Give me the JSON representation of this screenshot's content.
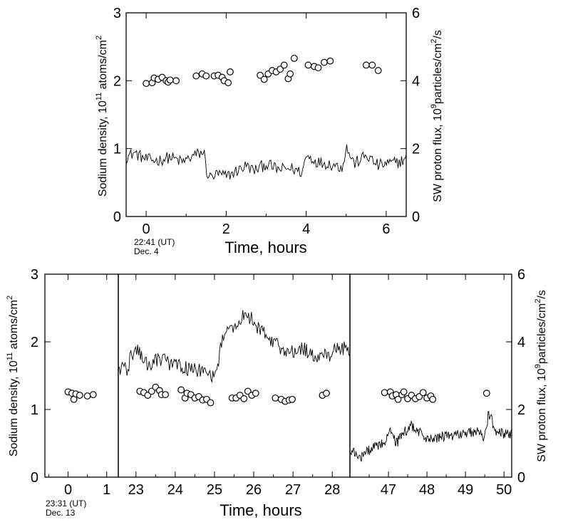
{
  "chart_data": [
    {
      "type": "scatter",
      "xlabel": "Time, hours",
      "ylabel": "Sodium density, 10",
      "ylabel_sup": "11",
      "ylabel_tail": " atoms/cm",
      "ylabel_tail_sup": "2",
      "y2label": "SW proton flux, 10",
      "y2label_sup": "9",
      "y2label_tail": "particles/cm",
      "y2label_tail_sup": "2",
      "y2label_end": "/s",
      "start_time": "22:41 (UT)",
      "start_date": "Dec. 4",
      "xlim": [
        -0.5,
        6.5
      ],
      "ylim": [
        0,
        3
      ],
      "y2lim": [
        0,
        6
      ],
      "x_ticks": [
        "0",
        "2",
        "4",
        "6"
      ],
      "y_ticks": [
        "0",
        "1",
        "2",
        "3"
      ],
      "y2_ticks": [
        "0",
        "2",
        "4",
        "6"
      ],
      "series": [
        {
          "marker": "open-circle",
          "axis": "left",
          "points": [
            [
              0.0,
              1.96
            ],
            [
              0.15,
              1.97
            ],
            [
              0.2,
              2.04
            ],
            [
              0.3,
              2.02
            ],
            [
              0.4,
              2.05
            ],
            [
              0.5,
              2.0
            ],
            [
              0.55,
              1.98
            ],
            [
              0.6,
              2.01
            ],
            [
              0.75,
              2.0
            ],
            [
              1.25,
              2.07
            ],
            [
              1.4,
              2.1
            ],
            [
              1.5,
              2.07
            ],
            [
              1.7,
              2.07
            ],
            [
              1.8,
              2.08
            ],
            [
              1.9,
              2.05
            ],
            [
              1.95,
              2.0
            ],
            [
              2.05,
              1.97
            ],
            [
              2.1,
              2.13
            ],
            [
              2.85,
              2.08
            ],
            [
              2.95,
              2.02
            ],
            [
              3.05,
              2.1
            ],
            [
              3.15,
              2.15
            ],
            [
              3.25,
              2.13
            ],
            [
              3.35,
              2.17
            ],
            [
              3.45,
              2.23
            ],
            [
              3.55,
              2.03
            ],
            [
              3.6,
              2.1
            ],
            [
              3.7,
              2.33
            ],
            [
              4.05,
              2.23
            ],
            [
              4.2,
              2.21
            ],
            [
              4.3,
              2.19
            ],
            [
              4.45,
              2.27
            ],
            [
              4.6,
              2.29
            ],
            [
              5.5,
              2.23
            ],
            [
              5.65,
              2.23
            ],
            [
              5.8,
              2.15
            ]
          ]
        },
        {
          "marker": "line",
          "axis": "right",
          "trace": [
            [
              -0.5,
              1.75
            ],
            [
              -0.3,
              1.88
            ],
            [
              0.0,
              1.68
            ],
            [
              0.3,
              1.65
            ],
            [
              0.6,
              1.75
            ],
            [
              0.9,
              1.6
            ],
            [
              1.2,
              1.8
            ],
            [
              1.45,
              1.9
            ],
            [
              1.5,
              1.35
            ],
            [
              1.6,
              1.15
            ],
            [
              1.8,
              1.25
            ],
            [
              2.0,
              1.18
            ],
            [
              2.2,
              1.3
            ],
            [
              2.5,
              1.5
            ],
            [
              2.7,
              1.35
            ],
            [
              3.0,
              1.55
            ],
            [
              3.3,
              1.38
            ],
            [
              3.6,
              1.42
            ],
            [
              3.9,
              1.3
            ],
            [
              4.0,
              1.8
            ],
            [
              4.3,
              1.6
            ],
            [
              4.6,
              1.55
            ],
            [
              4.9,
              1.45
            ],
            [
              5.0,
              2.05
            ],
            [
              5.2,
              1.55
            ],
            [
              5.5,
              1.8
            ],
            [
              5.8,
              1.5
            ],
            [
              6.0,
              1.55
            ],
            [
              6.3,
              1.6
            ],
            [
              6.5,
              1.7
            ]
          ],
          "noise": 0.18
        }
      ]
    },
    {
      "type": "scatter",
      "xlabel": "Time, hours",
      "ylabel": "Sodium density, 10",
      "ylabel_sup": "11",
      "ylabel_tail": " atoms/cm",
      "ylabel_tail_sup": "2",
      "y2label": "SW proton flux, 10",
      "y2label_sup": "9",
      "y2label_tail": "particles/cm",
      "y2label_tail_sup": "2",
      "y2label_end": "/s",
      "start_time": "23:31 (UT)",
      "start_date": "Dec. 13",
      "ylim": [
        0,
        3
      ],
      "y2lim": [
        0,
        6
      ],
      "y_ticks": [
        "0",
        "1",
        "2",
        "3"
      ],
      "y2_ticks": [
        "0",
        "2",
        "4",
        "6"
      ],
      "segments": [
        {
          "xlim": [
            -0.6,
            1.3
          ],
          "x_ticks": [
            "0",
            "1"
          ],
          "x_tick_values": [
            0,
            1
          ],
          "points": [
            [
              0.0,
              1.26
            ],
            [
              0.1,
              1.24
            ],
            [
              0.15,
              1.15
            ],
            [
              0.2,
              1.23
            ],
            [
              0.3,
              1.21
            ],
            [
              0.5,
              1.2
            ],
            [
              0.65,
              1.22
            ]
          ],
          "trace": []
        },
        {
          "xlim": [
            22.55,
            28.45
          ],
          "x_ticks": [
            "23",
            "24",
            "25",
            "26",
            "27",
            "28"
          ],
          "x_tick_values": [
            23,
            24,
            25,
            26,
            27,
            28
          ],
          "points": [
            [
              23.1,
              1.27
            ],
            [
              23.2,
              1.25
            ],
            [
              23.3,
              1.21
            ],
            [
              23.4,
              1.27
            ],
            [
              23.5,
              1.33
            ],
            [
              23.6,
              1.28
            ],
            [
              23.65,
              1.22
            ],
            [
              23.75,
              1.22
            ],
            [
              24.15,
              1.29
            ],
            [
              24.25,
              1.17
            ],
            [
              24.3,
              1.24
            ],
            [
              24.4,
              1.22
            ],
            [
              24.5,
              1.17
            ],
            [
              24.6,
              1.19
            ],
            [
              24.7,
              1.14
            ],
            [
              24.8,
              1.15
            ],
            [
              24.9,
              1.1
            ],
            [
              25.45,
              1.17
            ],
            [
              25.55,
              1.17
            ],
            [
              25.65,
              1.21
            ],
            [
              25.75,
              1.16
            ],
            [
              25.85,
              1.27
            ],
            [
              25.95,
              1.21
            ],
            [
              26.05,
              1.24
            ],
            [
              26.55,
              1.17
            ],
            [
              26.7,
              1.15
            ],
            [
              26.8,
              1.12
            ],
            [
              26.9,
              1.14
            ],
            [
              26.98,
              1.15
            ],
            [
              27.75,
              1.21
            ],
            [
              27.85,
              1.24
            ]
          ],
          "trace": [
            [
              22.55,
              3.22
            ],
            [
              22.8,
              3.22
            ],
            [
              22.85,
              3.5
            ],
            [
              23.0,
              3.8
            ],
            [
              23.3,
              3.3
            ],
            [
              23.6,
              3.5
            ],
            [
              24.0,
              3.3
            ],
            [
              24.4,
              3.2
            ],
            [
              24.8,
              3.1
            ],
            [
              25.0,
              2.9
            ],
            [
              25.1,
              3.4
            ],
            [
              25.2,
              4.2
            ],
            [
              25.5,
              4.4
            ],
            [
              25.8,
              4.85
            ],
            [
              26.0,
              4.6
            ],
            [
              26.2,
              4.3
            ],
            [
              26.5,
              4.0
            ],
            [
              26.8,
              3.7
            ],
            [
              27.0,
              3.75
            ],
            [
              27.3,
              3.8
            ],
            [
              27.6,
              3.5
            ],
            [
              27.9,
              3.6
            ],
            [
              28.2,
              3.85
            ],
            [
              28.45,
              3.7
            ]
          ],
          "noise": 0.22
        },
        {
          "xlim": [
            46.0,
            50.2
          ],
          "x_ticks": [
            "47",
            "48",
            "49",
            "50"
          ],
          "x_tick_values": [
            47,
            48,
            49,
            50
          ],
          "points": [
            [
              46.9,
              1.25
            ],
            [
              47.05,
              1.26
            ],
            [
              47.1,
              1.2
            ],
            [
              47.2,
              1.22
            ],
            [
              47.25,
              1.15
            ],
            [
              47.35,
              1.22
            ],
            [
              47.4,
              1.26
            ],
            [
              47.5,
              1.16
            ],
            [
              47.6,
              1.21
            ],
            [
              47.7,
              1.16
            ],
            [
              47.8,
              1.19
            ],
            [
              47.9,
              1.25
            ],
            [
              48.0,
              1.17
            ],
            [
              48.1,
              1.2
            ],
            [
              48.15,
              1.15
            ],
            [
              49.55,
              1.24
            ]
          ],
          "trace": [
            [
              46.0,
              0.75
            ],
            [
              46.3,
              0.6
            ],
            [
              46.6,
              0.9
            ],
            [
              46.9,
              1.0
            ],
            [
              47.0,
              1.4
            ],
            [
              47.2,
              1.0
            ],
            [
              47.4,
              1.3
            ],
            [
              47.6,
              1.55
            ],
            [
              47.8,
              1.3
            ],
            [
              48.1,
              1.1
            ],
            [
              48.4,
              1.2
            ],
            [
              48.7,
              1.25
            ],
            [
              49.0,
              1.3
            ],
            [
              49.3,
              1.35
            ],
            [
              49.5,
              1.15
            ],
            [
              49.55,
              1.5
            ],
            [
              49.6,
              1.9
            ],
            [
              49.8,
              1.35
            ],
            [
              50.0,
              1.3
            ],
            [
              50.2,
              1.25
            ]
          ],
          "noise": 0.16
        }
      ]
    }
  ]
}
